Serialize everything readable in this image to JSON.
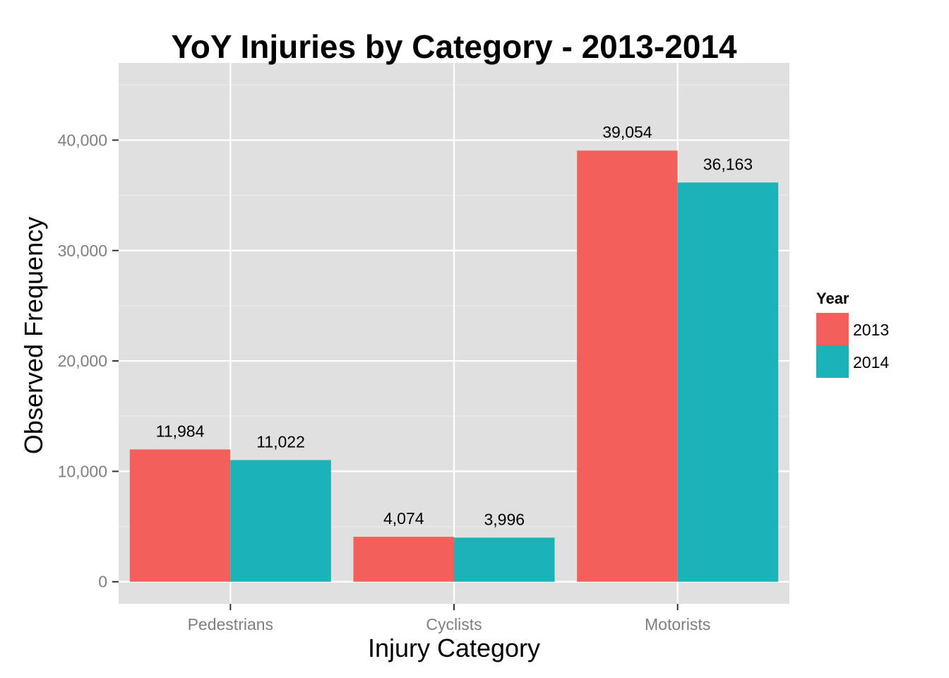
{
  "chart_data": {
    "type": "bar",
    "title": "YoY Injuries by Category - 2013-2014",
    "xlabel": "Injury Category",
    "ylabel": "Observed Frequency",
    "categories": [
      "Pedestrians",
      "Cyclists",
      "Motorists"
    ],
    "series": [
      {
        "name": "2013",
        "values": [
          11984,
          4074,
          39054
        ],
        "labels": [
          "11,984",
          "4,074",
          "39,054"
        ],
        "color": "#F3605B"
      },
      {
        "name": "2014",
        "values": [
          11022,
          3996,
          36163
        ],
        "labels": [
          "11,022",
          "3,996",
          "36,163"
        ],
        "color": "#1AB3B8"
      }
    ],
    "ylim": [
      -2000,
      47000
    ],
    "yticks": [
      0,
      10000,
      20000,
      30000,
      40000
    ],
    "ytick_labels": [
      "0",
      "10,000",
      "20,000",
      "30,000",
      "40,000"
    ],
    "legend": {
      "title": "Year",
      "position": "right",
      "entries": [
        "2013",
        "2014"
      ]
    },
    "grid": true,
    "panel_background": "#E0E0E0",
    "grid_color": "#FFFFFF",
    "minor_grid_color": "#EBEBEB"
  }
}
